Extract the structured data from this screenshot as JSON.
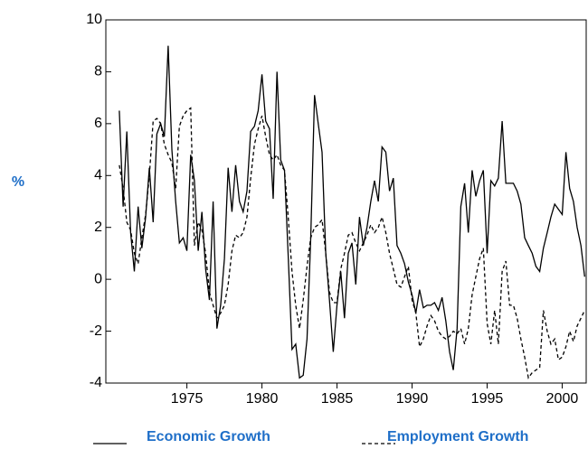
{
  "chart_data": {
    "type": "line",
    "y_label": "%",
    "x": [
      1970.5,
      1970.75,
      1971,
      1971.25,
      1971.5,
      1971.75,
      1972,
      1972.25,
      1972.5,
      1972.75,
      1973,
      1973.25,
      1973.5,
      1973.75,
      1974,
      1974.25,
      1974.5,
      1974.75,
      1975,
      1975.25,
      1975.5,
      1975.75,
      1976,
      1976.25,
      1976.5,
      1976.75,
      1977,
      1977.25,
      1977.5,
      1977.75,
      1978,
      1978.25,
      1978.5,
      1978.75,
      1979,
      1979.25,
      1979.5,
      1979.75,
      1980,
      1980.25,
      1980.5,
      1980.75,
      1981,
      1981.25,
      1981.5,
      1981.75,
      1982,
      1982.25,
      1982.5,
      1982.75,
      1983,
      1983.25,
      1983.5,
      1983.75,
      1984,
      1984.25,
      1984.5,
      1984.75,
      1985,
      1985.25,
      1985.5,
      1985.75,
      1986,
      1986.25,
      1986.5,
      1986.75,
      1987,
      1987.25,
      1987.5,
      1987.75,
      1988,
      1988.25,
      1988.5,
      1988.75,
      1989,
      1989.25,
      1989.5,
      1989.75,
      1990,
      1990.25,
      1990.5,
      1990.75,
      1991,
      1991.25,
      1991.5,
      1991.75,
      1992,
      1992.25,
      1992.5,
      1992.75,
      1993,
      1993.25,
      1993.5,
      1993.75,
      1994,
      1994.25,
      1994.5,
      1994.75,
      1995,
      1995.25,
      1995.5,
      1995.75,
      1996,
      1996.25,
      1996.5,
      1996.75,
      1997,
      1997.25,
      1997.5,
      1997.75,
      1998,
      1998.25,
      1998.5,
      1998.75,
      1999,
      1999.25,
      1999.5,
      1999.75,
      2000,
      2000.25,
      2000.5,
      2000.75,
      2001,
      2001.25,
      2001.5
    ],
    "series": [
      {
        "name": "Economic Growth",
        "color": "#000000",
        "line_style": "solid",
        "values": [
          6.5,
          2.8,
          5.7,
          1.8,
          0.3,
          2.8,
          1.2,
          2.4,
          4.3,
          2.2,
          5.6,
          6.0,
          5.5,
          9.0,
          5.0,
          3.0,
          1.4,
          1.6,
          1.1,
          4.8,
          3.8,
          1.1,
          2.6,
          0.4,
          -0.8,
          3.0,
          -1.9,
          -1.0,
          0.8,
          4.3,
          2.6,
          4.4,
          3.0,
          2.6,
          3.4,
          5.7,
          5.9,
          6.5,
          7.9,
          6.1,
          5.8,
          3.1,
          8.0,
          4.6,
          4.2,
          0.9,
          -2.7,
          -2.5,
          -3.8,
          -3.7,
          -2.3,
          1.6,
          7.1,
          6.0,
          4.9,
          1.0,
          -0.8,
          -2.8,
          -1.0,
          0.3,
          -1.5,
          1.0,
          1.4,
          -0.2,
          2.4,
          1.3,
          2.0,
          3.0,
          3.8,
          3.0,
          5.1,
          4.9,
          3.4,
          3.9,
          1.3,
          1.0,
          0.6,
          -0.1,
          -0.6,
          -1.3,
          -0.4,
          -1.1,
          -1.0,
          -1.0,
          -0.9,
          -1.2,
          -0.7,
          -1.6,
          -2.8,
          -3.5,
          -1.9,
          2.8,
          3.7,
          1.8,
          4.2,
          3.2,
          3.8,
          4.2,
          1.0,
          3.8,
          3.6,
          3.9,
          6.1,
          3.7,
          3.7,
          3.7,
          3.4,
          2.9,
          1.6,
          1.3,
          1.0,
          0.5,
          0.3,
          1.2,
          1.8,
          2.4,
          2.9,
          2.7,
          2.5,
          4.9,
          3.5,
          3.0,
          2.0,
          1.3,
          0.1
        ]
      },
      {
        "name": "Employment Growth",
        "color": "#000000",
        "line_style": "dashed",
        "values": [
          4.4,
          3.5,
          2.2,
          1.9,
          1.0,
          0.6,
          1.6,
          2.5,
          4.0,
          6.1,
          6.2,
          6.0,
          5.2,
          4.8,
          4.5,
          3.5,
          5.9,
          6.3,
          6.5,
          6.6,
          1.3,
          2.2,
          1.9,
          1.0,
          -0.5,
          -1.0,
          -1.5,
          -1.3,
          -1.0,
          -0.2,
          1.1,
          1.7,
          1.6,
          1.8,
          2.4,
          3.9,
          5.2,
          5.8,
          6.3,
          5.5,
          4.8,
          4.6,
          4.8,
          4.4,
          4.2,
          2.4,
          0.3,
          -1.0,
          -1.9,
          -0.8,
          0.5,
          1.6,
          2.0,
          2.1,
          2.3,
          1.0,
          -0.5,
          -0.9,
          -0.9,
          0.4,
          1.0,
          1.7,
          1.8,
          1.4,
          1.1,
          1.4,
          1.7,
          2.1,
          1.8,
          2.0,
          2.4,
          1.8,
          1.0,
          0.4,
          -0.2,
          -0.3,
          0.1,
          0.5,
          -0.8,
          -1.3,
          -2.6,
          -2.3,
          -1.8,
          -1.4,
          -1.6,
          -2.0,
          -2.2,
          -2.3,
          -2.2,
          -2.0,
          -2.1,
          -1.9,
          -2.5,
          -1.9,
          -0.6,
          0.1,
          0.8,
          1.2,
          -1.7,
          -2.5,
          -1.2,
          -2.5,
          0.3,
          0.7,
          -1.0,
          -1.0,
          -1.5,
          -2.3,
          -3.0,
          -3.8,
          -3.6,
          -3.5,
          -3.4,
          -1.2,
          -2.0,
          -2.5,
          -2.3,
          -3.1,
          -3.0,
          -2.6,
          -2.0,
          -2.4,
          -1.8,
          -1.5,
          -1.2
        ]
      }
    ],
    "xlim": [
      1969.6,
      2001.6
    ],
    "xticks": [
      1975,
      1980,
      1985,
      1990,
      1995,
      2000
    ],
    "ylim": [
      -4,
      10
    ],
    "yticks": [
      -4,
      -2,
      0,
      2,
      4,
      6,
      8,
      10
    ],
    "grid": false
  }
}
